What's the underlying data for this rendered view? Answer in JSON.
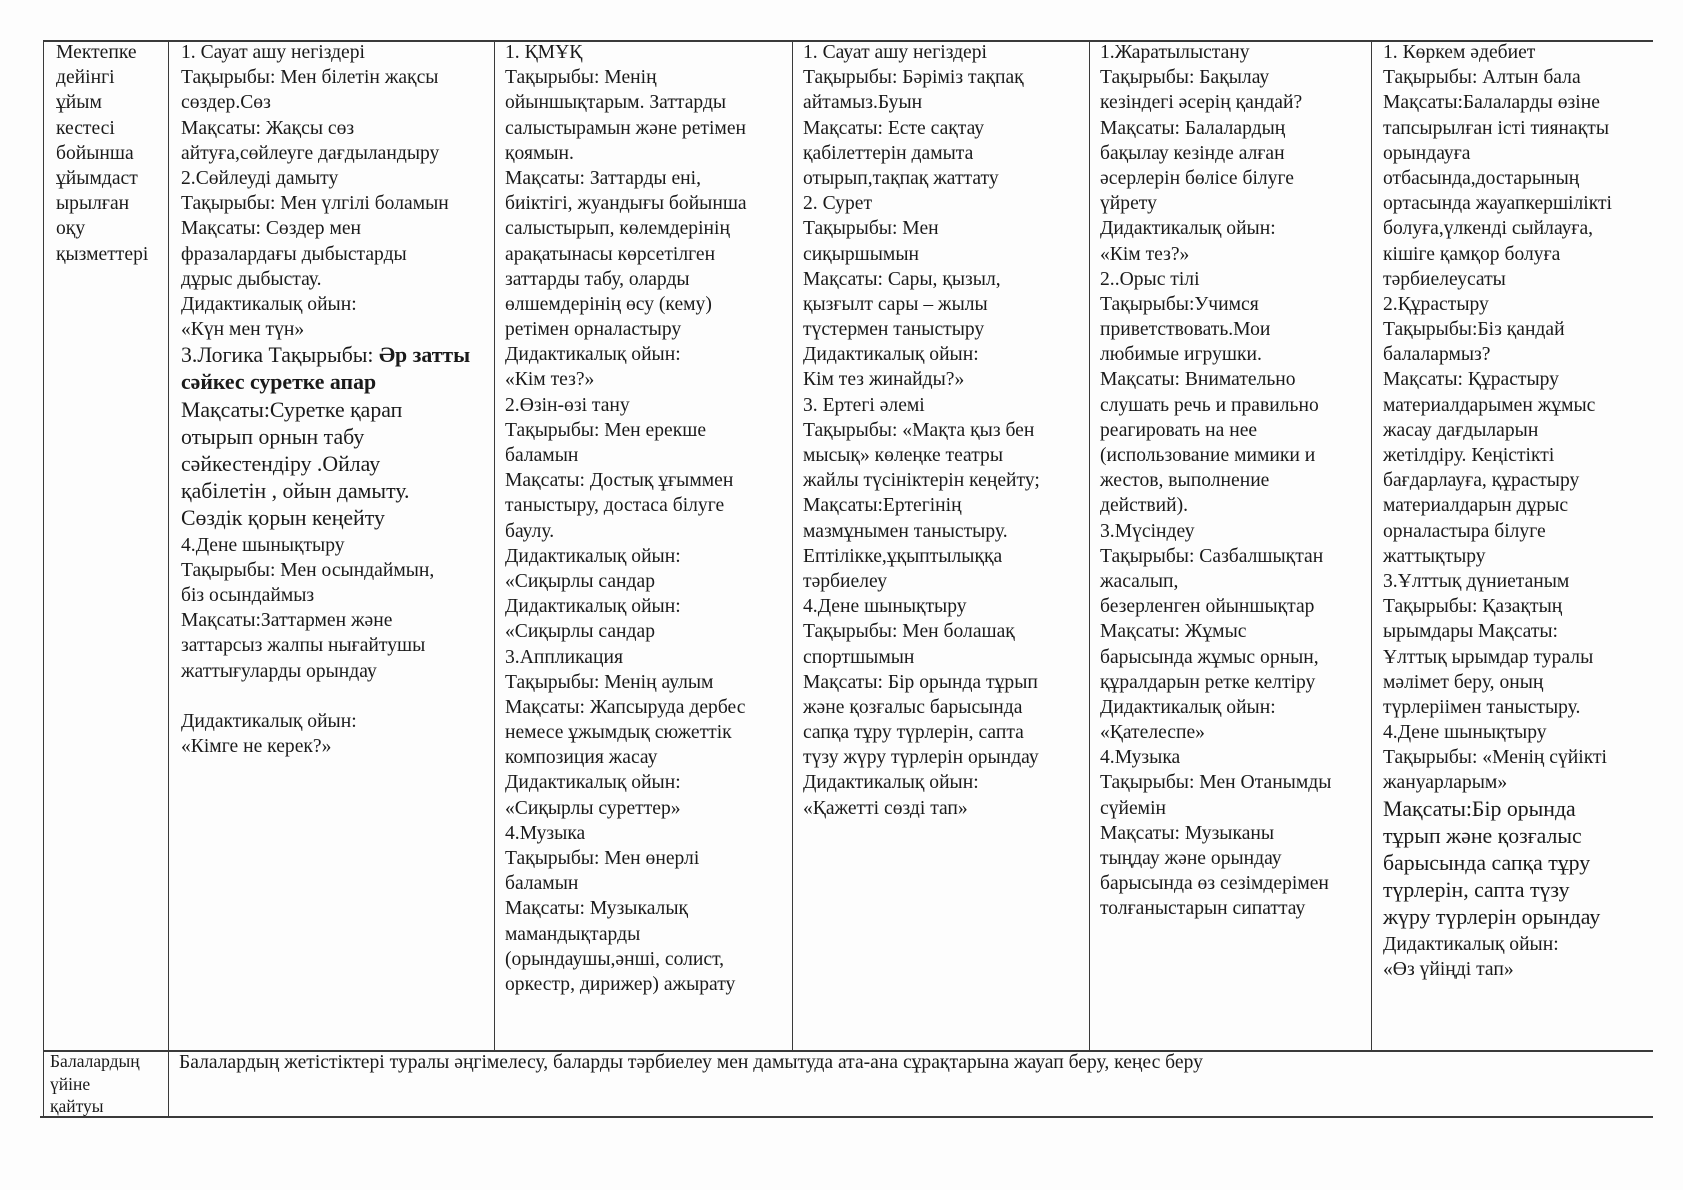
{
  "table": {
    "row1": {
      "label_lines": [
        "Мектепке",
        "дейінгі",
        "ұйым",
        "кестесі",
        "бойынша",
        "ұйымдаст",
        "ырылған",
        "оқу",
        "қызметтері"
      ],
      "cells": [
        {
          "lines": [
            "1. Сауат ашу негіздері",
            "Тақырыбы: Мен білетін жақсы",
            "сөздер.Сөз",
            "Мақсаты: Жақсы сөз",
            "айтуға,сөйлеуге дағдыландыру",
            "2.Сөйлеуді дамыту",
            "Тақырыбы: Мен үлгілі боламын",
            "Мақсаты: Сөздер мен",
            "фразалардағы  дыбыстарды",
            "дұрыс дыбыстау.",
            "Дидактикалық ойын:",
            "«Күн мен түн»",
            "3.Логика Тақырыбы: ",
            "Әр затты",
            "сәйкес суретке апар",
            "Мақсаты:Суретке қарап",
            "отырып орнын табу",
            "сәйкестендіру .Ойлау",
            "қабілетін , ойын дамыту.",
            "Сөздік қорын кеңейту",
            "4.Дене шынықтыру",
            "Тақырыбы: Мен осындаймын,",
            "біз осындаймыз",
            "Мақсаты:Заттармен және",
            "заттарсыз жалпы нығайтушы",
            "жаттығуларды орындау",
            "",
            "Дидактикалық ойын:",
            "«Кімге не керек?»"
          ]
        },
        {
          "lines": [
            "1. ҚМҰҚ",
            "Тақырыбы: Менің",
            "ойыншықтарым. Заттарды",
            "салыстырамын және ретімен",
            "қоямын.",
            "Мақсаты: Заттарды ені,",
            "биіктігі, жуандығы бойынша",
            "салыстырып, көлемдерінің",
            "арақатынасы көрсетілген",
            "заттарды табу, оларды",
            "өлшемдерінің өсу (кему)",
            "ретімен орналастыру",
            "Дидактикалық ойын:",
            "«Кім тез?»",
            "2.Өзін-өзі тану",
            "Тақырыбы: Мен ерекше",
            "баламын",
            "Мақсаты: Достық ұғыммен",
            "таныстыру, достаса білуге",
            "баулу.",
            "Дидактикалық ойын:",
            "«Сиқырлы сандар",
            "Дидактикалық ойын:",
            "«Сиқырлы сандар",
            "3.Аппликация",
            "Тақырыбы: Менің аулым",
            "Мақсаты: Жапсыруда дербес",
            "немесе ұжымдық сюжеттік",
            "композиция жасау",
            "Дидактикалық ойын:",
            "«Сиқырлы суреттер»",
            "4.Музыка",
            "Тақырыбы: Мен өнерлі",
            "баламын",
            "Мақсаты:  Музыкалық",
            "мамандықтарды",
            "(орындаушы,әнші, солист,",
            "оркестр, дирижер) ажырату"
          ]
        },
        {
          "lines": [
            "1. Сауат ашу негіздері",
            " Тақырыбы: Бәріміз тақпақ",
            "айтамыз.Буын",
            "Мақсаты: Есте сақтау",
            "қабілеттерін дамыта",
            "отырып,тақпақ жаттату",
            "2. Сурет",
            "Тақырыбы: Мен",
            "сиқыршымын",
            "Мақсаты: Сары, қызыл,",
            "қызғылт сары – жылы",
            "түстермен таныстыру",
            "Дидактикалық ойын:",
            "Кім тез жинайды?»",
            "3. Ертегі әлемі",
            "Тақырыбы: «Мақта қыз бен",
            "мысық» көлеңке театры",
            "жайлы түсініктерін кеңейту;",
            "Мақсаты:Ертегінің",
            "мазмұнымен таныстыру.",
            "Ептілікке,ұқыптылыққа",
            "тәрбиелеу",
            "4.Дене шынықтыру",
            "Тақырыбы: Мен болашақ",
            "спортшымын",
            "Мақсаты: Бір орында тұрып",
            "және қозғалыс барысында",
            "сапқа тұру түрлерін, сапта",
            "түзу жүру түрлерін орындау",
            "Дидактикалық ойын:",
            "«Қажетті сөзді тап»"
          ]
        },
        {
          "lines": [
            "1.Жаратылыстану",
            "Тақырыбы: Бақылау",
            "кезіндегі әсерің қандай?",
            "Мақсаты: Балалардың",
            "бақылау кезінде алған",
            "әсерлерін бөлісе білуге",
            "үйрету",
            "Дидактикалық ойын:",
            "«Кім тез?»",
            "2..Орыс тілі",
            "Тақырыбы:Учимся",
            "приветствовать.Мои",
            "любимые игрушки.",
            "Мақсаты: Внимательно",
            "слушать речь и правильно",
            "реагировать на нее",
            "(использование мимики и",
            "жестов, выполнение",
            "действий).",
            "3.Мүсіндеу",
            "Тақырыбы: Сазбалшықтан",
            "жасалып,",
            "безерленген ойыншықтар",
            "Мақсаты: Жұмыс",
            "барысында жұмыс орнын,",
            "құралдарын ретке келтіру",
            "Дидактикалық ойын:",
            "«Қателеспе»",
            "4.Музыка",
            "Тақырыбы: Мен Отанымды",
            "сүйемін",
            "Мақсаты: Музыканы",
            "тыңдау және орындау",
            "барысында өз сезімдерімен",
            "толғаныстарын сипаттау"
          ]
        },
        {
          "lines": [
            "1. Көркем әдебиет",
            "Тақырыбы: Алтын бала",
            "Мақсаты:Балаларды өзіне",
            "тапсырылған істі тиянақты",
            "орындауға",
            "отбасында,достарының",
            "ортасында жауапкершілікті",
            "болуға,үлкенді сыйлауға,",
            "кішіге қамқор болуға",
            "тәрбиелеусаты",
            "2.Құрастыру",
            "Тақырыбы:Біз қандай",
            "балалармыз?",
            "Мақсаты: Құрастыру",
            "материалдарымен жұмыс",
            "жасау дағдыларын",
            "жетілдіру. Кеңістікті",
            "бағдарлауға, құрастыру",
            "материалдарын дұрыс",
            "орналастыра білуге",
            "жаттықтыру",
            "3.Ұлттық дүниетаным",
            "Тақырыбы: Қазақтың",
            "ырымдары        Мақсаты:",
            "Ұлттық ырымдар туралы",
            "мәлімет беру, оның",
            "түрлеріімен таныстыру.",
            "4.Дене шынықтыру",
            "Тақырыбы: «Менің сүйікті",
            "жануарларым»",
            "Мақсаты:Бір орында",
            "тұрып және қозғалыс",
            "барысында сапқа тұру",
            "түрлерін, сапта түзу",
            "жүру түрлерін орындау",
            "Дидактикалық ойын:",
            "«Өз үйіңді тап»"
          ]
        }
      ]
    },
    "row2": {
      "label_lines": [
        "Балалардың",
        "үйіне",
        "қайтуы"
      ],
      "text": "Балалардың жетістіктері туралы әңгімелесу, баларды тәрбиелеу мен дамытуда ата-ана сұрақтарына жауап беру, кеңес беру"
    }
  }
}
